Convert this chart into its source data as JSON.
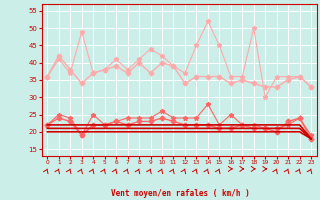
{
  "x": [
    0,
    1,
    2,
    3,
    4,
    5,
    6,
    7,
    8,
    9,
    10,
    11,
    12,
    13,
    14,
    15,
    16,
    17,
    18,
    19,
    20,
    21,
    22,
    23
  ],
  "series": [
    {
      "name": "rafales_high",
      "color": "#ffaaaa",
      "linewidth": 0.8,
      "marker": "*",
      "markersize": 3.5,
      "values": [
        36,
        41,
        37,
        49,
        37,
        38,
        41,
        38,
        41,
        44,
        42,
        39,
        37,
        45,
        52,
        45,
        36,
        36,
        50,
        30,
        36,
        36,
        36,
        33
      ]
    },
    {
      "name": "vent_moyen_high",
      "color": "#ffaaaa",
      "linewidth": 1.0,
      "marker": "D",
      "markersize": 2.5,
      "values": [
        36,
        42,
        38,
        34,
        37,
        38,
        39,
        37,
        40,
        37,
        40,
        39,
        34,
        36,
        36,
        36,
        34,
        35,
        34,
        33,
        33,
        35,
        36,
        33
      ]
    },
    {
      "name": "vent_moyen_mid",
      "color": "#ff6666",
      "linewidth": 1.0,
      "marker": "D",
      "markersize": 2.5,
      "values": [
        22,
        24,
        23,
        19,
        22,
        22,
        23,
        22,
        23,
        23,
        24,
        23,
        22,
        22,
        22,
        21,
        21,
        22,
        21,
        21,
        20,
        23,
        24,
        18
      ]
    },
    {
      "name": "rafales_mid",
      "color": "#ff6666",
      "linewidth": 0.8,
      "marker": "*",
      "markersize": 3.5,
      "values": [
        22,
        25,
        24,
        19,
        25,
        22,
        23,
        24,
        24,
        24,
        26,
        24,
        24,
        24,
        28,
        22,
        25,
        22,
        22,
        21,
        21,
        22,
        24,
        19
      ]
    },
    {
      "name": "flat_high",
      "color": "#cc0000",
      "linewidth": 1.2,
      "marker": null,
      "markersize": 0,
      "values": [
        22,
        22,
        22,
        22,
        22,
        22,
        22,
        22,
        22,
        22,
        22,
        22,
        22,
        22,
        22,
        22,
        22,
        22,
        22,
        22,
        22,
        22,
        22,
        18
      ]
    },
    {
      "name": "flat_low",
      "color": "#cc0000",
      "linewidth": 1.2,
      "marker": null,
      "markersize": 0,
      "values": [
        20,
        20,
        20,
        20,
        20,
        20,
        20,
        20,
        20,
        20,
        20,
        20,
        20,
        20,
        20,
        20,
        20,
        20,
        20,
        20,
        20,
        20,
        20,
        18
      ]
    },
    {
      "name": "flat_mid",
      "color": "#cc0000",
      "linewidth": 1.2,
      "marker": null,
      "markersize": 0,
      "values": [
        21,
        21,
        21,
        21,
        21,
        21,
        21,
        21,
        21,
        21,
        21,
        21,
        21,
        21,
        21,
        21,
        21,
        21,
        21,
        21,
        21,
        21,
        21,
        18
      ]
    }
  ],
  "wind_directions": [
    45,
    45,
    45,
    45,
    45,
    45,
    45,
    45,
    45,
    45,
    45,
    45,
    45,
    45,
    45,
    45,
    0,
    0,
    0,
    0,
    45,
    45,
    45,
    45
  ],
  "xlabel": "Vent moyen/en rafales ( km/h )",
  "ylim": [
    13,
    57
  ],
  "yticks": [
    15,
    20,
    25,
    30,
    35,
    40,
    45,
    50,
    55
  ],
  "bg_color": "#cceee8",
  "grid_color": "#ffffff",
  "axis_color": "#cc0000",
  "label_color": "#cc0000"
}
